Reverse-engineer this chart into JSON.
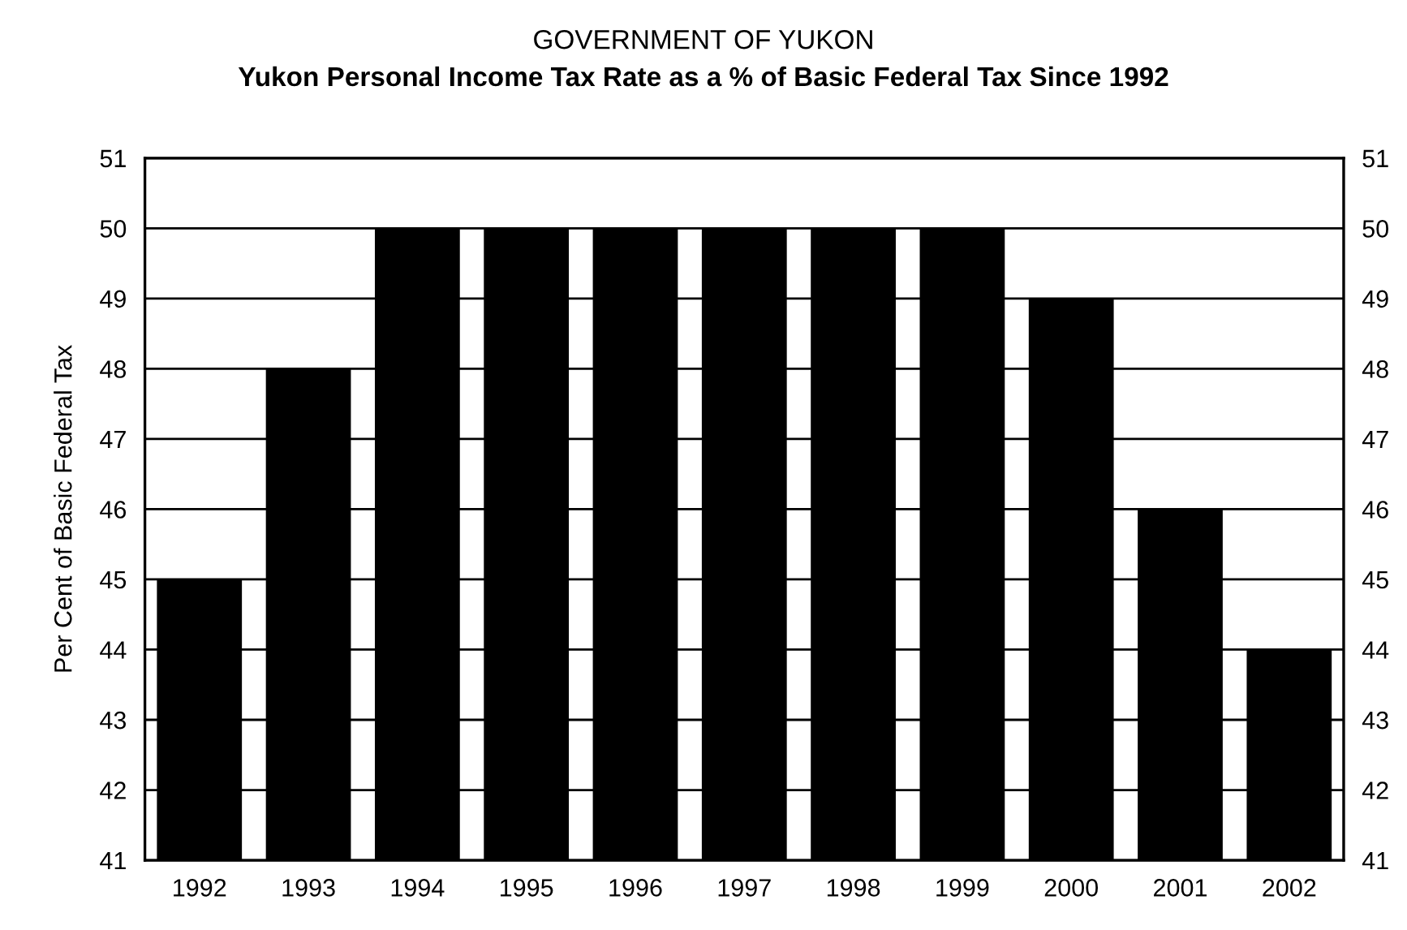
{
  "chart_data": {
    "type": "bar",
    "title": "GOVERNMENT OF YUKON",
    "subtitle": "Yukon Personal Income Tax Rate as a % of Basic Federal Tax Since 1992",
    "ylabel": "Per Cent of Basic Federal Tax",
    "categories": [
      "1992",
      "1993",
      "1994",
      "1995",
      "1996",
      "1997",
      "1998",
      "1999",
      "2000",
      "2001",
      "2002"
    ],
    "values": [
      45,
      48,
      50,
      50,
      50,
      50,
      50,
      50,
      49,
      46,
      44
    ],
    "color": "#000000",
    "ylim": [
      41,
      51
    ],
    "yticks": [
      41,
      42,
      43,
      44,
      45,
      46,
      47,
      48,
      49,
      50,
      51
    ],
    "y2lim": [
      41,
      51
    ],
    "y2ticks": [
      41,
      42,
      43,
      44,
      45,
      46,
      47,
      48,
      49,
      50,
      51
    ],
    "grid": "y",
    "legend": false
  }
}
